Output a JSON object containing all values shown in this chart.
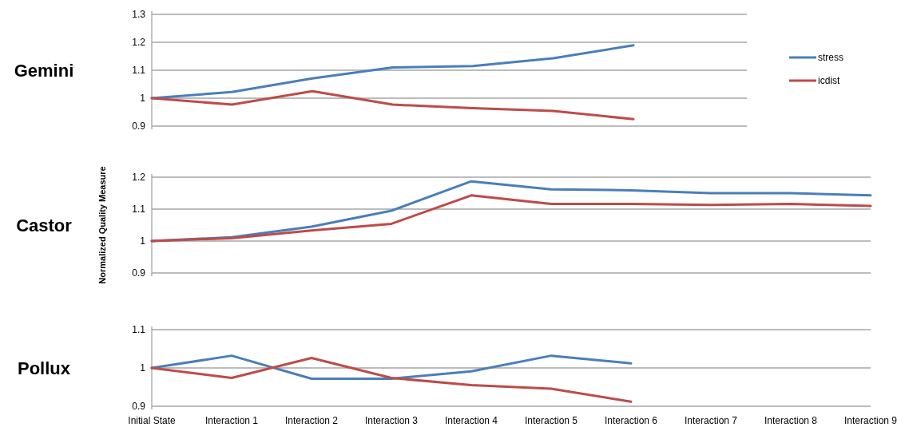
{
  "chart_data": [
    {
      "type": "line",
      "title": "Gemini",
      "categories": [
        null,
        null,
        null,
        null,
        null,
        null,
        null
      ],
      "ylim": [
        0.9,
        1.3
      ],
      "yticks": [
        0.9,
        1,
        1.1,
        1.2,
        1.3
      ],
      "grid": "y",
      "legend": "right",
      "tick_labels": "y",
      "marker": "none",
      "line_style": "solid",
      "series": [
        {
          "name": "stress",
          "color": "#4a7ebb",
          "values": [
            1,
            1.022,
            1.071,
            1.11,
            1.115,
            1.143,
            1.189
          ]
        },
        {
          "name": "icdist",
          "color": "#be4b48",
          "values": [
            1,
            0.977,
            1.025,
            0.977,
            0.964,
            0.954,
            0.925
          ]
        }
      ]
    },
    {
      "type": "line",
      "title": "Castor",
      "ylabel": "Normalized Quality Measure",
      "categories": [
        null,
        null,
        null,
        null,
        null,
        null,
        null,
        null,
        null,
        null
      ],
      "ylim": [
        0.9,
        1.2
      ],
      "yticks": [
        0.9,
        1,
        1.1,
        1.2
      ],
      "grid": "y",
      "tick_labels": "y",
      "marker": "none",
      "line_style": "solid",
      "series": [
        {
          "color": "#4a7ebb",
          "values": [
            1,
            1.012,
            1.045,
            1.095,
            1.187,
            1.162,
            1.159,
            1.15,
            1.15,
            1.143
          ]
        },
        {
          "color": "#be4b48",
          "values": [
            1,
            1.009,
            1.033,
            1.054,
            1.143,
            1.116,
            1.116,
            1.113,
            1.116,
            1.11
          ]
        }
      ]
    },
    {
      "type": "line",
      "title": "Pollux",
      "categories": [
        "Initial State",
        "Interaction 1",
        "Interaction 2",
        "Interaction 3",
        "Interaction 4",
        "Interaction 5",
        "Interaction 6",
        "Interaction 7",
        "Interaction 8",
        "Interaction 9"
      ],
      "ylim": [
        0.9,
        1.1
      ],
      "yticks": [
        0.9,
        1,
        1.1
      ],
      "grid": "y",
      "marker": "none",
      "line_style": "solid",
      "series": [
        {
          "color": "#4a7ebb",
          "values": [
            1,
            1.032,
            0.972,
            0.972,
            0.991,
            1.032,
            1.012,
            null,
            null,
            null
          ]
        },
        {
          "color": "#be4b48",
          "values": [
            1,
            0.974,
            1.026,
            0.974,
            0.955,
            0.946,
            0.912,
            null,
            null,
            null
          ]
        }
      ]
    }
  ]
}
